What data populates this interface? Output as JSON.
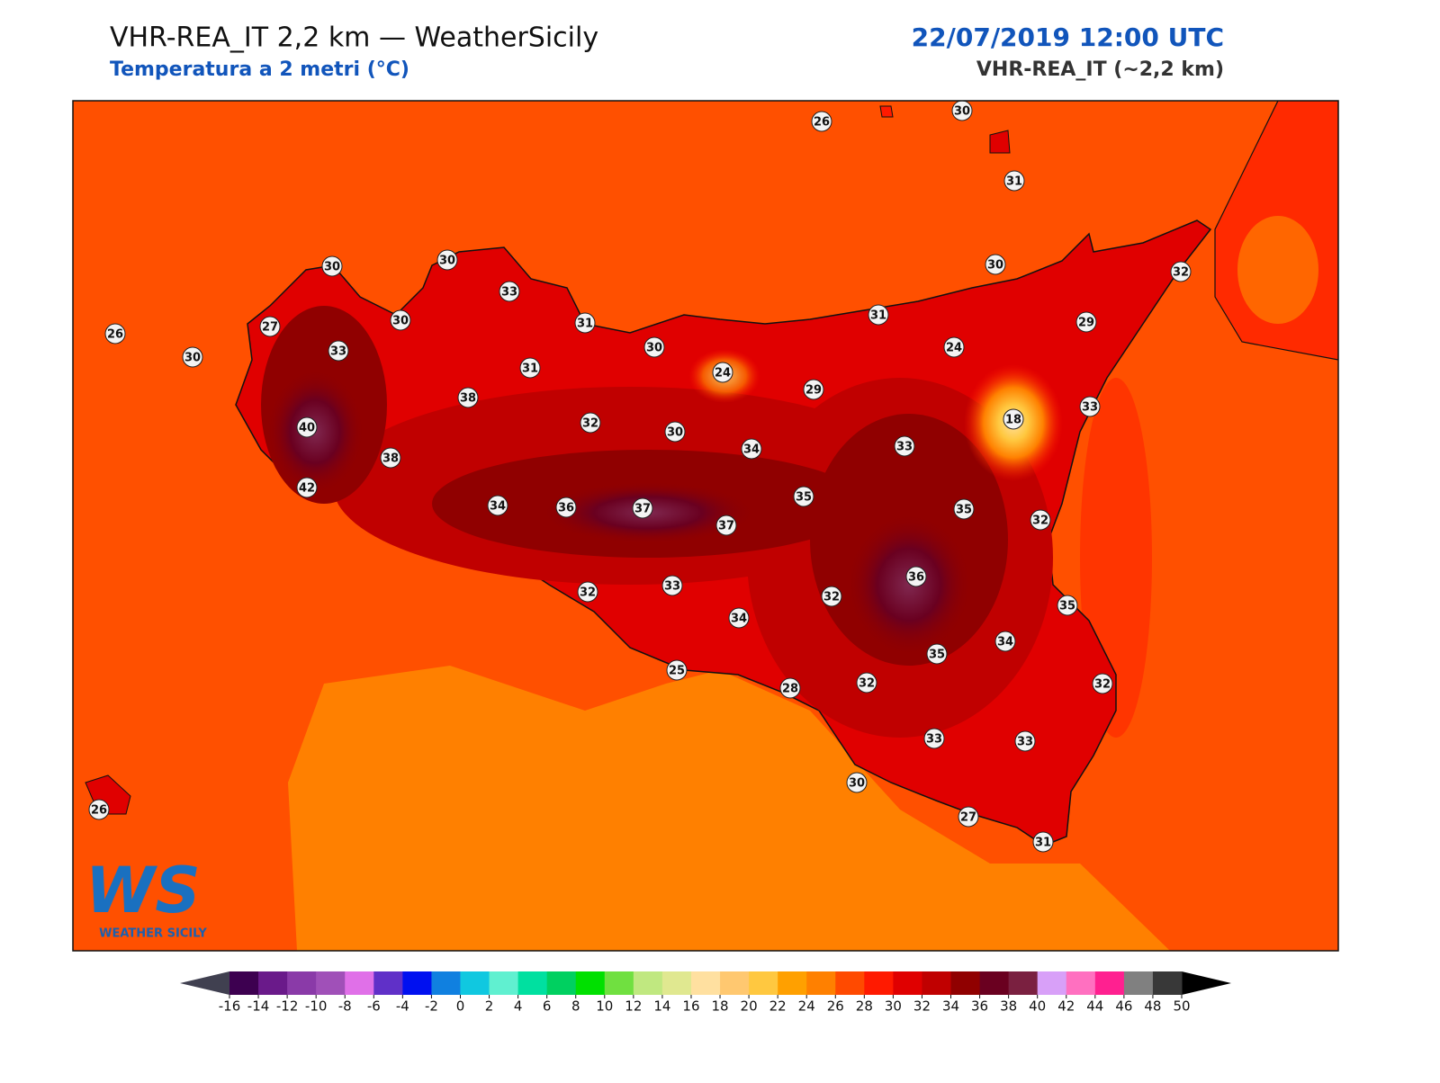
{
  "header": {
    "title": "VHR-REA_IT 2,2 km — WeatherSicily",
    "subtitle": "Temperatura a 2 metri (°C)",
    "date": "22/07/2019 12:00 UTC",
    "model": "VHR-REA_IT (~2,2 km)"
  },
  "stations": [
    26,
    30,
    31,
    30,
    30,
    33,
    30,
    32,
    26,
    27,
    30,
    31,
    31,
    29,
    30,
    33,
    30,
    24,
    31,
    24,
    29,
    38,
    32,
    18,
    33,
    40,
    30,
    34,
    33,
    38,
    42,
    35,
    34,
    36,
    37,
    37,
    35,
    32,
    36,
    32,
    33,
    32,
    34,
    35,
    34,
    35,
    25,
    32,
    32,
    28,
    33,
    33,
    30,
    26,
    27,
    31
  ],
  "logo": {
    "mark": "WS",
    "name": "WEATHER SICILY"
  },
  "colorbar": {
    "ticks": [
      -16,
      -14,
      -12,
      -10,
      -8,
      -6,
      -4,
      -2,
      0,
      2,
      4,
      6,
      8,
      10,
      12,
      14,
      16,
      18,
      20,
      22,
      24,
      26,
      28,
      30,
      32,
      34,
      36,
      38,
      40,
      42,
      44,
      46,
      48,
      50
    ],
    "colors": [
      "#3d0050",
      "#6a1a8a",
      "#8a3aa8",
      "#a050b8",
      "#e070e8",
      "#6030c8",
      "#0010f0",
      "#1080e0",
      "#10c8e0",
      "#60f0d0",
      "#00e0a0",
      "#00d060",
      "#00e000",
      "#70e040",
      "#c0e880",
      "#e0e890",
      "#ffe0a0",
      "#ffc870",
      "#ffc840",
      "#ffa000",
      "#ff8000",
      "#ff4a00",
      "#ff1a00",
      "#e00000",
      "#c00000",
      "#900000",
      "#6a0020",
      "#7a2040",
      "#d8a0f8",
      "#ff70c0",
      "#ff2090",
      "#808080",
      "#383838"
    ],
    "under": "#404050",
    "over": "#000000"
  }
}
